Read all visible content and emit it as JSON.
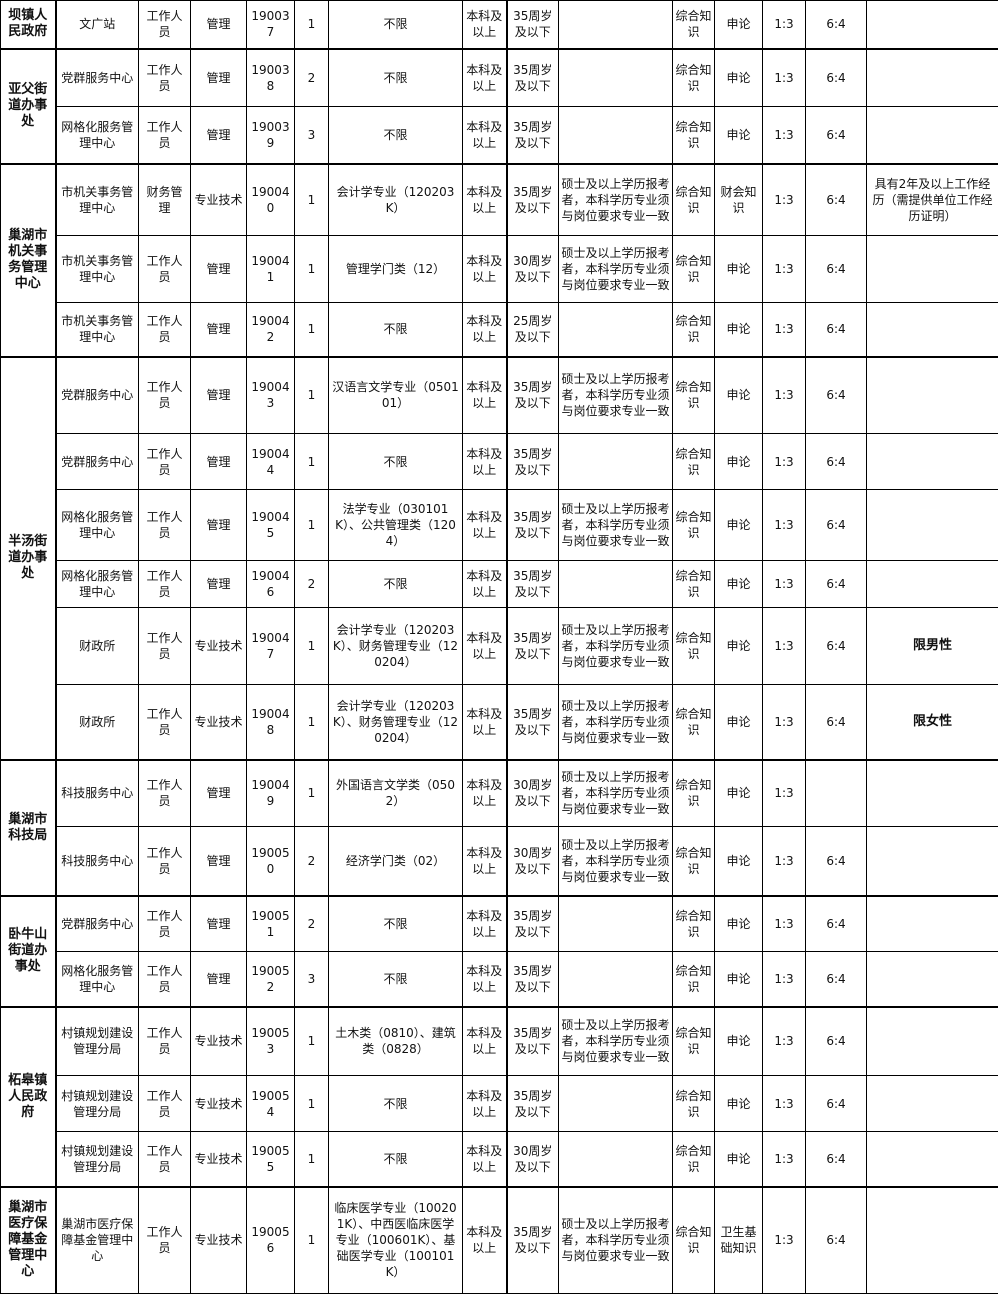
{
  "units": [
    {
      "name": "坝镇人民政府",
      "positions": [
        {
          "dept": "文广站",
          "post": "工作人员",
          "type": "管理",
          "code": "190037",
          "num": "1",
          "major": "不限",
          "edu": "本科及以上",
          "age": "35周岁及以下",
          "other": "",
          "exam1": "综合知识",
          "exam2": "申论",
          "ratio": "1:3",
          "weight": "6:4",
          "remark": ""
        }
      ]
    },
    {
      "name": "亚父街道办事处",
      "positions": [
        {
          "dept": "党群服务中心",
          "post": "工作人员",
          "type": "管理",
          "code": "190038",
          "num": "2",
          "major": "不限",
          "edu": "本科及以上",
          "age": "35周岁及以下",
          "other": "",
          "exam1": "综合知识",
          "exam2": "申论",
          "ratio": "1:3",
          "weight": "6:4",
          "remark": ""
        },
        {
          "dept": "网格化服务管理中心",
          "post": "工作人员",
          "type": "管理",
          "code": "190039",
          "num": "3",
          "major": "不限",
          "edu": "本科及以上",
          "age": "35周岁及以下",
          "other": "",
          "exam1": "综合知识",
          "exam2": "申论",
          "ratio": "1:3",
          "weight": "6:4",
          "remark": ""
        }
      ]
    },
    {
      "name": "巢湖市机关事务管理中心",
      "positions": [
        {
          "dept": "市机关事务管理中心",
          "post": "财务管理",
          "type": "专业技术",
          "code": "190040",
          "num": "1",
          "major": "会计学专业（120203K）",
          "edu": "本科及以上",
          "age": "35周岁及以下",
          "other": "硕士及以上学历报考者，本科学历专业须与岗位要求专业一致",
          "exam1": "综合知识",
          "exam2": "财会知识",
          "ratio": "1:3",
          "weight": "6:4",
          "remark": "具有2年及以上工作经历（需提供单位工作经历证明）"
        },
        {
          "dept": "市机关事务管理中心",
          "post": "工作人员",
          "type": "管理",
          "code": "190041",
          "num": "1",
          "major": "管理学门类（12）",
          "edu": "本科及以上",
          "age": "30周岁及以下",
          "other": "硕士及以上学历报考者，本科学历专业须与岗位要求专业一致",
          "exam1": "综合知识",
          "exam2": "申论",
          "ratio": "1:3",
          "weight": "6:4",
          "remark": ""
        },
        {
          "dept": "市机关事务管理中心",
          "post": "工作人员",
          "type": "管理",
          "code": "190042",
          "num": "1",
          "major": "不限",
          "edu": "本科及以上",
          "age": "25周岁及以下",
          "other": "",
          "exam1": "综合知识",
          "exam2": "申论",
          "ratio": "1:3",
          "weight": "6:4",
          "remark": ""
        }
      ]
    },
    {
      "name": "半汤街道办事处",
      "positions": [
        {
          "dept": "党群服务中心",
          "post": "工作人员",
          "type": "管理",
          "code": "190043",
          "num": "1",
          "major": "汉语言文学专业（050101）",
          "edu": "本科及以上",
          "age": "35周岁及以下",
          "other": "硕士及以上学历报考者，本科学历专业须与岗位要求专业一致",
          "exam1": "综合知识",
          "exam2": "申论",
          "ratio": "1:3",
          "weight": "6:4",
          "remark": ""
        },
        {
          "dept": "党群服务中心",
          "post": "工作人员",
          "type": "管理",
          "code": "190044",
          "num": "1",
          "major": "不限",
          "edu": "本科及以上",
          "age": "35周岁及以下",
          "other": "",
          "exam1": "综合知识",
          "exam2": "申论",
          "ratio": "1:3",
          "weight": "6:4",
          "remark": ""
        },
        {
          "dept": "网格化服务管理中心",
          "post": "工作人员",
          "type": "管理",
          "code": "190045",
          "num": "1",
          "major": "法学专业（030101K）、公共管理类（1204）",
          "edu": "本科及以上",
          "age": "35周岁及以下",
          "other": "硕士及以上学历报考者，本科学历专业须与岗位要求专业一致",
          "exam1": "综合知识",
          "exam2": "申论",
          "ratio": "1:3",
          "weight": "6:4",
          "remark": ""
        },
        {
          "dept": "网格化服务管理中心",
          "post": "工作人员",
          "type": "管理",
          "code": "190046",
          "num": "2",
          "major": "不限",
          "edu": "本科及以上",
          "age": "35周岁及以下",
          "other": "",
          "exam1": "综合知识",
          "exam2": "申论",
          "ratio": "1:3",
          "weight": "6:4",
          "remark": ""
        },
        {
          "dept": "财政所",
          "post": "工作人员",
          "type": "专业技术",
          "code": "190047",
          "num": "1",
          "major": "会计学专业（120203K）、财务管理专业（120204）",
          "edu": "本科及以上",
          "age": "35周岁及以下",
          "other": "硕士及以上学历报考者，本科学历专业须与岗位要求专业一致",
          "exam1": "综合知识",
          "exam2": "申论",
          "ratio": "1:3",
          "weight": "6:4",
          "remark": "限男性"
        },
        {
          "dept": "财政所",
          "post": "工作人员",
          "type": "专业技术",
          "code": "190048",
          "num": "1",
          "major": "会计学专业（120203K）、财务管理专业（120204）",
          "edu": "本科及以上",
          "age": "35周岁及以下",
          "other": "硕士及以上学历报考者，本科学历专业须与岗位要求专业一致",
          "exam1": "综合知识",
          "exam2": "申论",
          "ratio": "1:3",
          "weight": "6:4",
          "remark": "限女性"
        }
      ]
    },
    {
      "name": "巢湖市科技局",
      "positions": [
        {
          "dept": "科技服务中心",
          "post": "工作人员",
          "type": "管理",
          "code": "190049",
          "num": "1",
          "major": "外国语言文学类（0502）",
          "edu": "本科及以上",
          "age": "30周岁及以下",
          "other": "硕士及以上学历报考者，本科学历专业须与岗位要求专业一致",
          "exam1": "综合知识",
          "exam2": "申论",
          "ratio": "1:3",
          "weight": "",
          "remark": ""
        },
        {
          "dept": "科技服务中心",
          "post": "工作人员",
          "type": "管理",
          "code": "190050",
          "num": "2",
          "major": "经济学门类（02）",
          "edu": "本科及以上",
          "age": "30周岁及以下",
          "other": "硕士及以上学历报考者，本科学历专业须与岗位要求专业一致",
          "exam1": "综合知识",
          "exam2": "申论",
          "ratio": "1:3",
          "weight": "6:4",
          "remark": ""
        }
      ]
    },
    {
      "name": "卧牛山街道办事处",
      "positions": [
        {
          "dept": "党群服务中心",
          "post": "工作人员",
          "type": "管理",
          "code": "190051",
          "num": "2",
          "major": "不限",
          "edu": "本科及以上",
          "age": "35周岁及以下",
          "other": "",
          "exam1": "综合知识",
          "exam2": "申论",
          "ratio": "1:3",
          "weight": "6:4",
          "remark": ""
        },
        {
          "dept": "网格化服务管理中心",
          "post": "工作人员",
          "type": "管理",
          "code": "190052",
          "num": "3",
          "major": "不限",
          "edu": "本科及以上",
          "age": "35周岁及以下",
          "other": "",
          "exam1": "综合知识",
          "exam2": "申论",
          "ratio": "1:3",
          "weight": "6:4",
          "remark": ""
        }
      ]
    },
    {
      "name": "柘皋镇人民政府",
      "positions": [
        {
          "dept": "村镇规划建设管理分局",
          "post": "工作人员",
          "type": "专业技术",
          "code": "190053",
          "num": "1",
          "major": "土木类（0810）、建筑类（0828）",
          "edu": "本科及以上",
          "age": "35周岁及以下",
          "other": "硕士及以上学历报考者，本科学历专业须与岗位要求专业一致",
          "exam1": "综合知识",
          "exam2": "申论",
          "ratio": "1:3",
          "weight": "6:4",
          "remark": ""
        },
        {
          "dept": "村镇规划建设管理分局",
          "post": "工作人员",
          "type": "专业技术",
          "code": "190054",
          "num": "1",
          "major": "不限",
          "edu": "本科及以上",
          "age": "35周岁及以下",
          "other": "",
          "exam1": "综合知识",
          "exam2": "申论",
          "ratio": "1:3",
          "weight": "6:4",
          "remark": ""
        },
        {
          "dept": "村镇规划建设管理分局",
          "post": "工作人员",
          "type": "专业技术",
          "code": "190055",
          "num": "1",
          "major": "不限",
          "edu": "本科及以上",
          "age": "30周岁及以下",
          "other": "",
          "exam1": "综合知识",
          "exam2": "申论",
          "ratio": "1:3",
          "weight": "6:4",
          "remark": ""
        }
      ]
    },
    {
      "name": "巢湖市医疗保障基金管理中心",
      "positions": [
        {
          "dept": "巢湖市医疗保障基金管理中心",
          "post": "工作人员",
          "type": "专业技术",
          "code": "190056",
          "num": "1",
          "major": "临床医学专业（100201K）、中西医临床医学专业（100601K）、基础医学专业（100101K）",
          "edu": "本科及以上",
          "age": "35周岁及以下",
          "other": "硕士及以上学历报考者，本科学历专业须与岗位要求专业一致",
          "exam1": "综合知识",
          "exam2": "卫生基础知识",
          "ratio": "1:3",
          "weight": "6:4",
          "remark": ""
        }
      ]
    }
  ]
}
